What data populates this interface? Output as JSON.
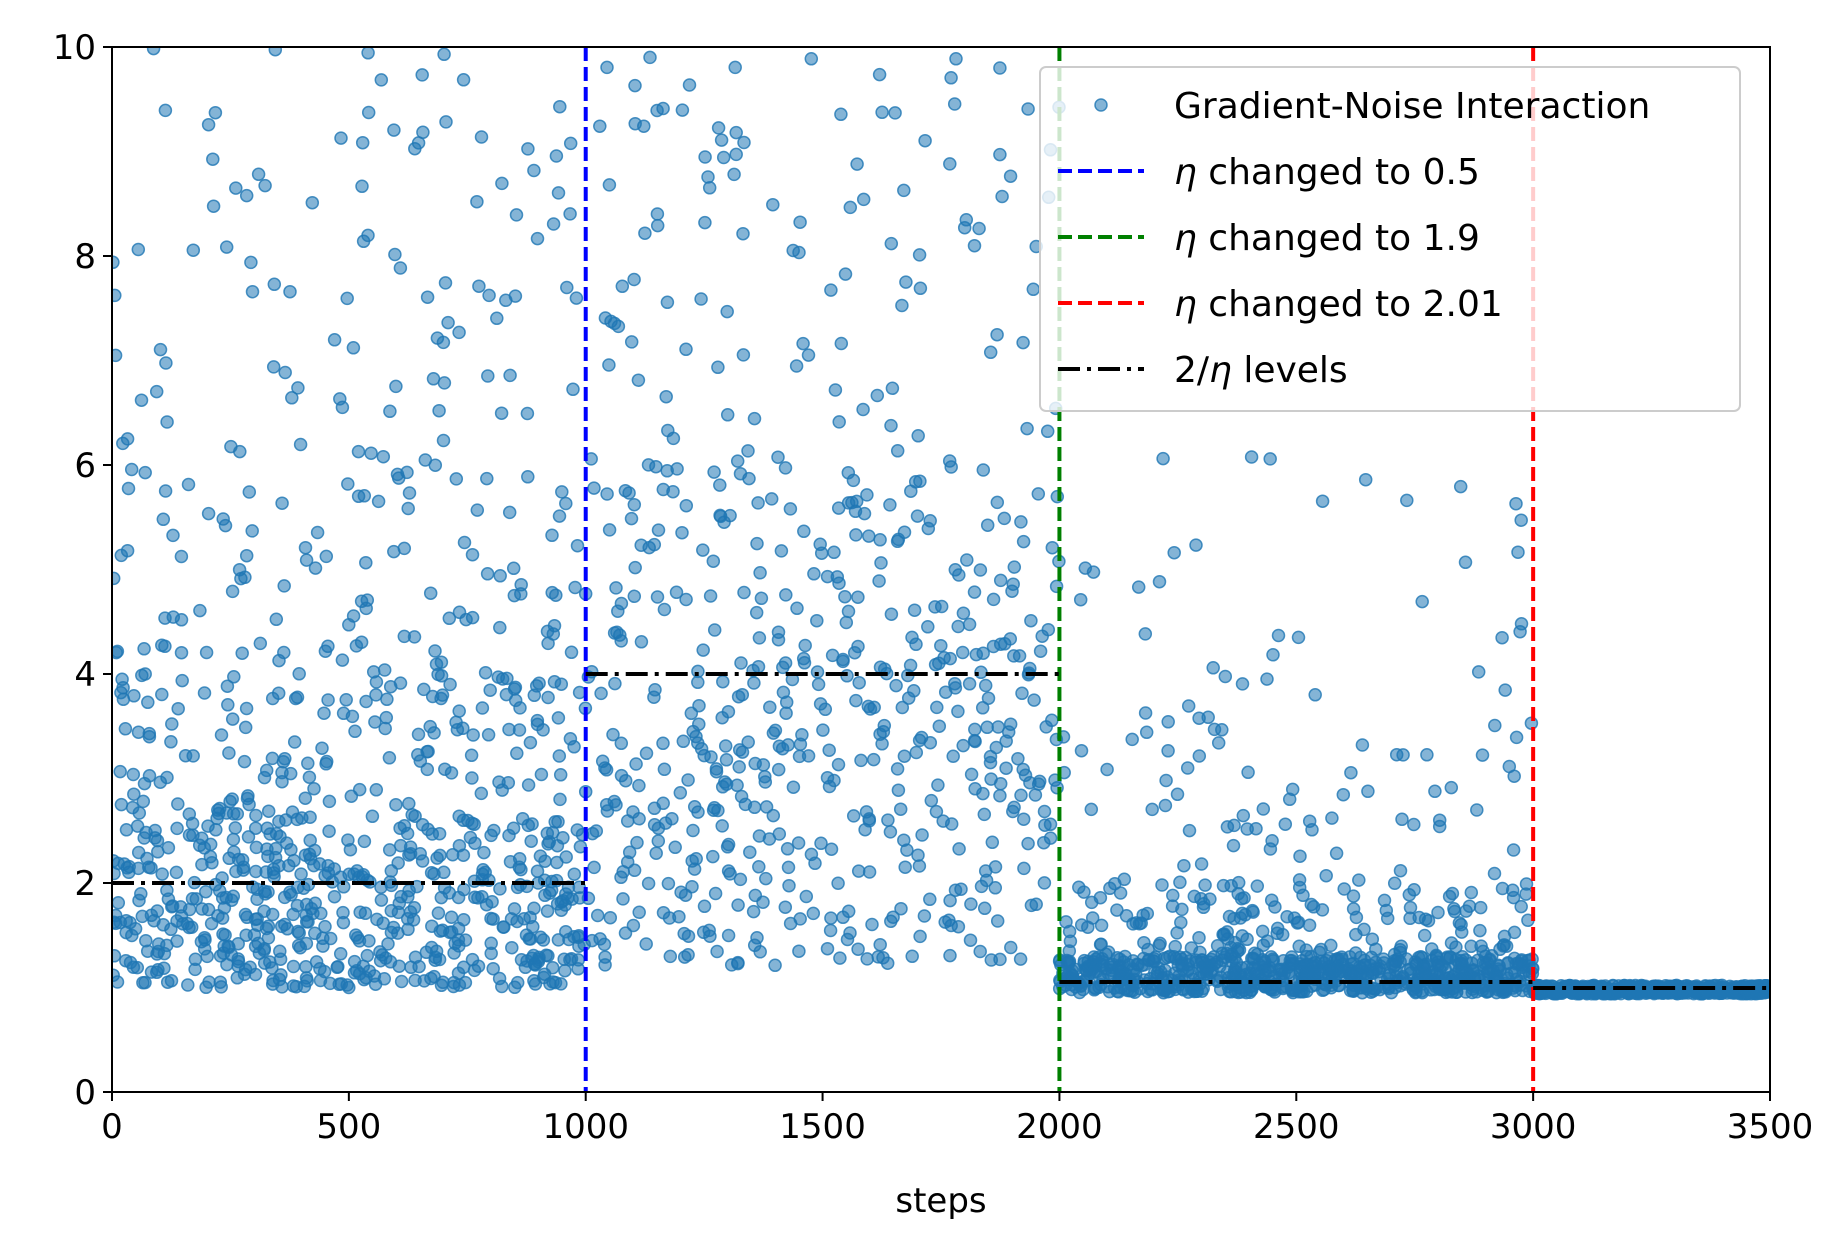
{
  "chart_data": {
    "type": "scatter",
    "title": "",
    "xlabel": "steps",
    "ylabel": "",
    "xlim": [
      0,
      3500
    ],
    "ylim": [
      0,
      10
    ],
    "xticks": [
      0,
      500,
      1000,
      1500,
      2000,
      2500,
      3000,
      3500
    ],
    "yticks": [
      0,
      2,
      4,
      6,
      8,
      10
    ],
    "xtick_labels": [
      "0",
      "500",
      "1000",
      "1500",
      "2000",
      "2500",
      "3000",
      "3500"
    ],
    "ytick_labels": [
      "0",
      "2",
      "4",
      "6",
      "8",
      "10"
    ],
    "grid": false,
    "legend_position": "top-right",
    "colors": {
      "scatter": "#1f77b4",
      "eta_05": "#0000ff",
      "eta_19": "#008000",
      "eta_201": "#ff0000",
      "levels": "#000000"
    },
    "series": [
      {
        "name": "Gradient-Noise Interaction",
        "kind": "scatter",
        "segments": [
          {
            "x_range": [
              0,
              1000
            ],
            "bands": [
              {
                "count": 520,
                "y_min": 1.0,
                "y_max": 2.6
              },
              {
                "count": 170,
                "y_min": 2.6,
                "y_max": 4.0
              },
              {
                "count": 110,
                "y_min": 4.0,
                "y_max": 6.0
              },
              {
                "count": 100,
                "y_min": 6.0,
                "y_max": 10.0
              }
            ]
          },
          {
            "x_range": [
              1000,
              2000
            ],
            "bands": [
              {
                "count": 160,
                "y_min": 1.2,
                "y_max": 2.6
              },
              {
                "count": 180,
                "y_min": 2.6,
                "y_max": 4.0
              },
              {
                "count": 170,
                "y_min": 4.0,
                "y_max": 6.0
              },
              {
                "count": 110,
                "y_min": 6.0,
                "y_max": 10.0
              }
            ]
          },
          {
            "x_range": [
              2000,
              3000
            ],
            "bands": [
              {
                "count": 700,
                "y_min": 0.95,
                "y_max": 1.3
              },
              {
                "count": 160,
                "y_min": 1.3,
                "y_max": 2.0
              },
              {
                "count": 70,
                "y_min": 2.0,
                "y_max": 3.6
              },
              {
                "count": 35,
                "y_min": 3.6,
                "y_max": 6.2
              }
            ]
          },
          {
            "x_range": [
              3000,
              3500
            ],
            "bands": [
              {
                "count": 600,
                "y_min": 0.94,
                "y_max": 1.02
              }
            ]
          }
        ]
      },
      {
        "name": "η changed to 0.5",
        "kind": "vline",
        "x": 1000
      },
      {
        "name": "η changed to 1.9",
        "kind": "vline",
        "x": 2000
      },
      {
        "name": "η changed to 2.01",
        "kind": "vline",
        "x": 3000
      },
      {
        "name": "2/η levels",
        "kind": "steps",
        "segments": [
          {
            "x": [
              0,
              1000
            ],
            "y": 2.0
          },
          {
            "x": [
              1000,
              2000
            ],
            "y": 4.0
          },
          {
            "x": [
              2000,
              3000
            ],
            "y": 1.053
          },
          {
            "x": [
              3000,
              3500
            ],
            "y": 0.995
          }
        ]
      }
    ],
    "legend": [
      {
        "label": "Gradient-Noise Interaction",
        "marker": "dot",
        "color_key": "scatter"
      },
      {
        "label": "changed to 0.5",
        "symbol": "η",
        "marker": "dash",
        "color_key": "eta_05"
      },
      {
        "label": "changed to 1.9",
        "symbol": "η",
        "marker": "dash",
        "color_key": "eta_19"
      },
      {
        "label": "changed to 2.01",
        "symbol": "η",
        "marker": "dash",
        "color_key": "eta_201"
      },
      {
        "label": " levels",
        "prefix": "2/",
        "symbol": "η",
        "marker": "dashdot",
        "color_key": "levels"
      }
    ]
  }
}
